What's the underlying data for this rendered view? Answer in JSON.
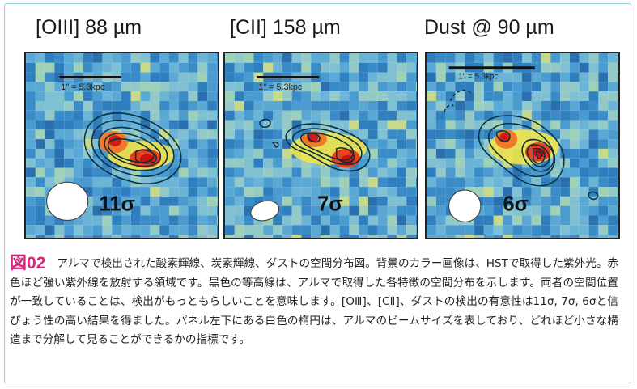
{
  "panels": [
    {
      "title": "[OIII] 88 µm",
      "scale_label": "1\" = 5.3kpc",
      "significance": "11σ"
    },
    {
      "title": "[CII] 158 µm",
      "scale_label": "1\" = 5.3kpc",
      "significance": "7σ"
    },
    {
      "title": "Dust @ 90 µm",
      "scale_label": "1\" = 5.3kpc",
      "significance": "6σ"
    }
  ],
  "caption": {
    "label": "図02",
    "text": "アルマで検出された酸素輝線、炭素輝線、ダストの空間分布図。背景のカラー画像は、HSTで取得した紫外光。赤色ほど強い紫外線を放射する領域です。黒色の等高線は、アルマで取得した各特徴の空間分布を示します。両者の空間位置が一致していることは、検出がもっともらしいことを意味します。[OⅢ]、[CⅡ]、ダストの検出の有意性は11σ, 7σ, 6σと信ぴょう性の高い結果を得ました。パネル左下にある白色の楕円は、アルマのビームサイズを表しており、どれほど小さな構造まで分解して見ることができるかの指標です。"
  },
  "colors": {
    "frame_border": "#8fd3e3",
    "figure_label": "#d6257f",
    "background_map": "#3f8fc4"
  }
}
